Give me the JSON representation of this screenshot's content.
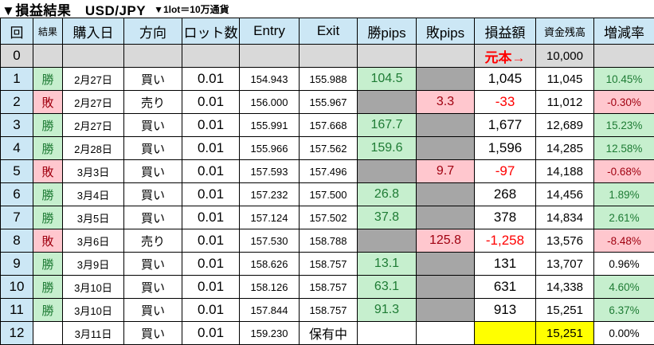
{
  "title": {
    "main": "▼損益結果　USD/JPY",
    "sub": "▼1lot＝10万通貨"
  },
  "colors": {
    "header_bg": "#cce7f5",
    "round_col_bg": "#cce7f5",
    "row0_bg": "#d9d9d9",
    "empty_pips_bg": "#a6a6a6",
    "win_bg": "#c6efce",
    "win_text": "#1e7b34",
    "loss_bg": "#ffc7ce",
    "loss_text": "#a00010",
    "negative_amount_text": "#ff0000",
    "highlight_bg": "#ffff00"
  },
  "columns": [
    "回",
    "結果",
    "購入日",
    "方向",
    "ロット数",
    "Entry",
    "Exit",
    "勝pips",
    "敗pips",
    "損益額",
    "資金残高",
    "増減率"
  ],
  "rows": [
    {
      "no": "0",
      "result": "",
      "date": "",
      "dir": "",
      "lot": "",
      "entry": "",
      "exit": "",
      "wpips": "",
      "lpips": "",
      "pl": "元本→",
      "bal": "10,000",
      "chg": "",
      "cls": {
        "no": "grey0",
        "result": "grey0",
        "date": "grey0",
        "dir": "grey0",
        "lot": "grey0",
        "entry": "grey0",
        "exit": "grey0",
        "wpips": "grey0",
        "lpips": "grey0",
        "pl": "grey0 principal",
        "bal": "grey0",
        "chg": "grey0"
      }
    },
    {
      "no": "1",
      "result": "勝",
      "date": "2月27日",
      "dir": "買い",
      "lot": "0.01",
      "entry": "154.943",
      "exit": "155.988",
      "wpips": "104.5",
      "lpips": "",
      "pl": "1,045",
      "bal": "11,045",
      "chg": "10.45%",
      "cls": {
        "no": "blue",
        "result": "win",
        "wpips": "win",
        "lpips": "grey",
        "chg": "win"
      }
    },
    {
      "no": "2",
      "result": "敗",
      "date": "2月27日",
      "dir": "売り",
      "lot": "0.01",
      "entry": "156.000",
      "exit": "155.967",
      "wpips": "",
      "lpips": "3.3",
      "pl": "-33",
      "bal": "11,012",
      "chg": "-0.30%",
      "cls": {
        "no": "blue",
        "result": "loss",
        "wpips": "grey",
        "lpips": "loss",
        "pl": "neg",
        "chg": "loss"
      }
    },
    {
      "no": "3",
      "result": "勝",
      "date": "2月27日",
      "dir": "買い",
      "lot": "0.01",
      "entry": "155.991",
      "exit": "157.668",
      "wpips": "167.7",
      "lpips": "",
      "pl": "1,677",
      "bal": "12,689",
      "chg": "15.23%",
      "cls": {
        "no": "blue",
        "result": "win",
        "wpips": "win",
        "lpips": "grey",
        "chg": "win"
      }
    },
    {
      "no": "4",
      "result": "勝",
      "date": "2月28日",
      "dir": "買い",
      "lot": "0.01",
      "entry": "155.966",
      "exit": "157.562",
      "wpips": "159.6",
      "lpips": "",
      "pl": "1,596",
      "bal": "14,285",
      "chg": "12.58%",
      "cls": {
        "no": "blue",
        "result": "win",
        "wpips": "win",
        "lpips": "grey",
        "chg": "win"
      }
    },
    {
      "no": "5",
      "result": "敗",
      "date": "3月3日",
      "dir": "買い",
      "lot": "0.01",
      "entry": "157.593",
      "exit": "157.496",
      "wpips": "",
      "lpips": "9.7",
      "pl": "-97",
      "bal": "14,188",
      "chg": "-0.68%",
      "cls": {
        "no": "blue",
        "result": "loss",
        "wpips": "grey",
        "lpips": "loss",
        "pl": "neg",
        "chg": "loss"
      }
    },
    {
      "no": "6",
      "result": "勝",
      "date": "3月4日",
      "dir": "買い",
      "lot": "0.01",
      "entry": "157.232",
      "exit": "157.500",
      "wpips": "26.8",
      "lpips": "",
      "pl": "268",
      "bal": "14,456",
      "chg": "1.89%",
      "cls": {
        "no": "blue",
        "result": "win",
        "wpips": "win",
        "lpips": "grey",
        "chg": "win"
      }
    },
    {
      "no": "7",
      "result": "勝",
      "date": "3月5日",
      "dir": "買い",
      "lot": "0.01",
      "entry": "157.124",
      "exit": "157.502",
      "wpips": "37.8",
      "lpips": "",
      "pl": "378",
      "bal": "14,834",
      "chg": "2.61%",
      "cls": {
        "no": "blue",
        "result": "win",
        "wpips": "win",
        "lpips": "grey",
        "chg": "win"
      }
    },
    {
      "no": "8",
      "result": "敗",
      "date": "3月6日",
      "dir": "売り",
      "lot": "0.01",
      "entry": "157.530",
      "exit": "158.788",
      "wpips": "",
      "lpips": "125.8",
      "pl": "-1,258",
      "bal": "13,576",
      "chg": "-8.48%",
      "cls": {
        "no": "blue",
        "result": "loss",
        "wpips": "grey",
        "lpips": "loss",
        "pl": "neg",
        "chg": "loss"
      }
    },
    {
      "no": "9",
      "result": "勝",
      "date": "3月9日",
      "dir": "買い",
      "lot": "0.01",
      "entry": "158.626",
      "exit": "158.757",
      "wpips": "13.1",
      "lpips": "",
      "pl": "131",
      "bal": "13,707",
      "chg": "0.96%",
      "cls": {
        "no": "blue",
        "result": "win",
        "wpips": "win",
        "lpips": "grey"
      }
    },
    {
      "no": "10",
      "result": "勝",
      "date": "3月10日",
      "dir": "買い",
      "lot": "0.01",
      "entry": "158.126",
      "exit": "158.757",
      "wpips": "63.1",
      "lpips": "",
      "pl": "631",
      "bal": "14,338",
      "chg": "4.60%",
      "cls": {
        "no": "blue",
        "result": "win",
        "wpips": "win",
        "lpips": "grey",
        "chg": "win"
      }
    },
    {
      "no": "11",
      "result": "勝",
      "date": "3月10日",
      "dir": "買い",
      "lot": "0.01",
      "entry": "157.844",
      "exit": "158.757",
      "wpips": "91.3",
      "lpips": "",
      "pl": "913",
      "bal": "15,251",
      "chg": "6.37%",
      "cls": {
        "no": "blue",
        "result": "win",
        "wpips": "win",
        "lpips": "grey",
        "chg": "win"
      }
    },
    {
      "no": "12",
      "result": "",
      "date": "3月11日",
      "dir": "買い",
      "lot": "0.01",
      "entry": "159.230",
      "exit": "保有中",
      "wpips": "",
      "lpips": "",
      "pl": "",
      "bal": "15,251",
      "chg": "0.00%",
      "cls": {
        "no": "blue",
        "exit": "big",
        "pl": "yellow",
        "bal": "yellow"
      }
    }
  ]
}
